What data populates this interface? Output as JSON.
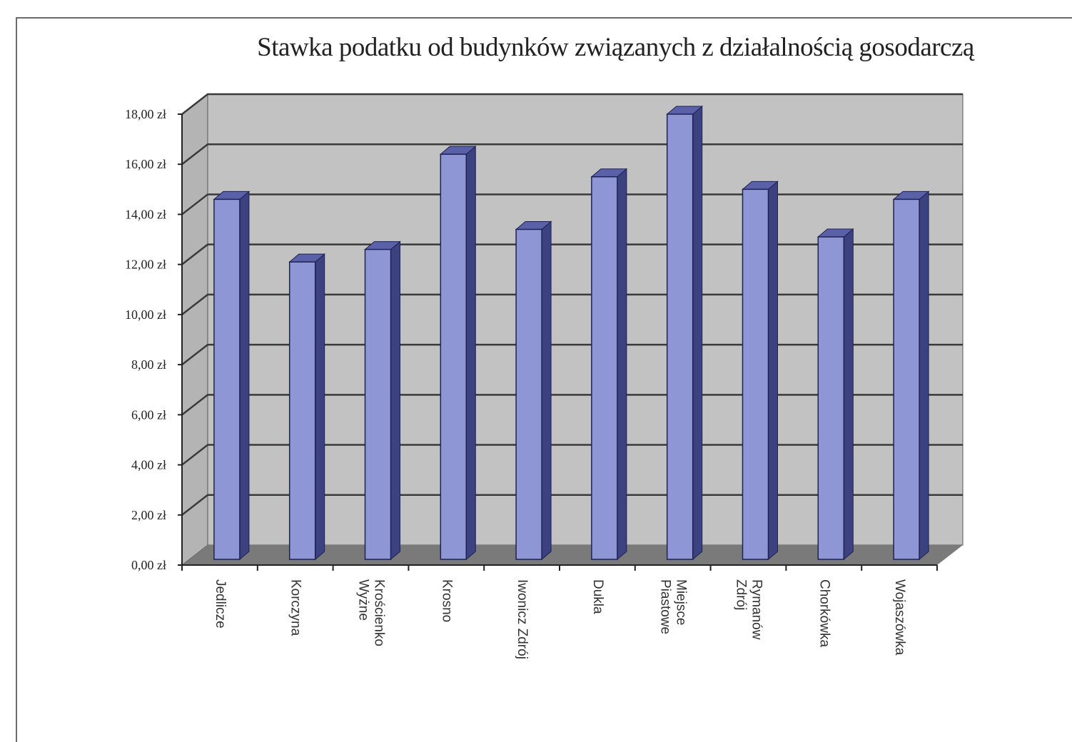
{
  "chart_data": {
    "type": "bar",
    "title": "Stawka podatku od budynków związanych z działalnością gosodarczą",
    "xlabel": "",
    "ylabel": "",
    "ylim": [
      0,
      18
    ],
    "yticks": [
      "0,00 zł",
      "2,00 zł",
      "4,00 zł",
      "6,00 zł",
      "8,00 zł",
      "10,00 zł",
      "12,00 zł",
      "14,00 zł",
      "16,00 zł",
      "18,00 zł"
    ],
    "categories": [
      [
        "Jedlicze"
      ],
      [
        "Korczyna"
      ],
      [
        "Krościenko",
        "Wyżne"
      ],
      [
        "Krosno"
      ],
      [
        "Iwonicz Zdrój"
      ],
      [
        "Dukla"
      ],
      [
        "Miejsce",
        "Piastowe"
      ],
      [
        "Rymanów",
        "Zdrój"
      ],
      [
        "Chorkówka"
      ],
      [
        "Wojaszówka"
      ]
    ],
    "values": [
      14.6,
      12.1,
      12.6,
      16.4,
      13.4,
      15.5,
      18.0,
      15.0,
      13.1,
      14.6
    ],
    "grid": true,
    "legend": "none",
    "colors": {
      "bar_front": "#8e96d6",
      "bar_side": "#3c4280",
      "bar_top": "#5a61a8",
      "wall": "#c2c2c2",
      "floor": "#7a7a7a",
      "grid": "#3a3a3a"
    }
  }
}
